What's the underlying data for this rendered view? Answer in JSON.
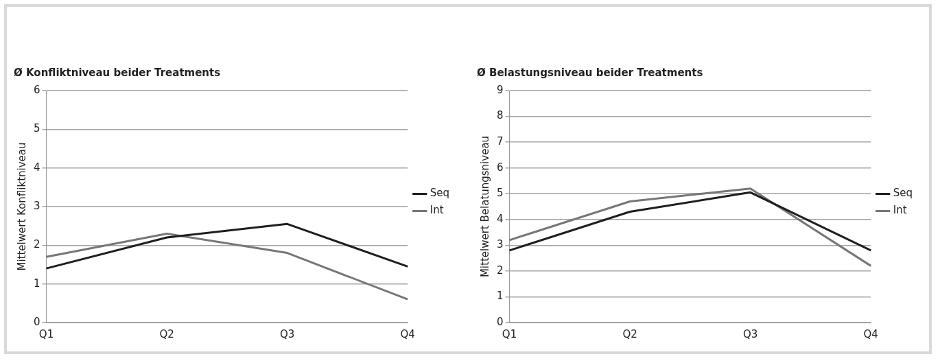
{
  "chart_data": [
    {
      "type": "line",
      "title": "Ø Konfliktniveau beider Treatments",
      "ylabel": "Mittelwert Konfliktniveau",
      "categories": [
        "Q1",
        "Q2",
        "Q3",
        "Q4"
      ],
      "series": [
        {
          "name": "Seq",
          "color": "#1e1e1e",
          "values": [
            1.4,
            2.2,
            2.55,
            1.45
          ]
        },
        {
          "name": "Int",
          "color": "#777777",
          "values": [
            1.7,
            2.3,
            1.8,
            0.6
          ]
        }
      ],
      "ylim": [
        0,
        6
      ],
      "yticks": [
        0,
        1,
        2,
        3,
        4,
        5,
        6
      ],
      "grid": "y",
      "legend": "right",
      "marker": "none"
    },
    {
      "type": "line",
      "title": "Ø Belastungsniveau beider Treatments",
      "ylabel": "Mittelwert Belatungsniveau",
      "categories": [
        "Q1",
        "Q2",
        "Q3",
        "Q4"
      ],
      "series": [
        {
          "name": "Seq",
          "color": "#1e1e1e",
          "values": [
            2.8,
            4.3,
            5.05,
            2.8
          ]
        },
        {
          "name": "Int",
          "color": "#777777",
          "values": [
            3.2,
            4.7,
            5.2,
            2.2
          ]
        }
      ],
      "ylim": [
        0,
        9
      ],
      "yticks": [
        0,
        1,
        2,
        3,
        4,
        5,
        6,
        7,
        8,
        9
      ],
      "grid": "y",
      "legend": "right",
      "marker": "none"
    }
  ]
}
